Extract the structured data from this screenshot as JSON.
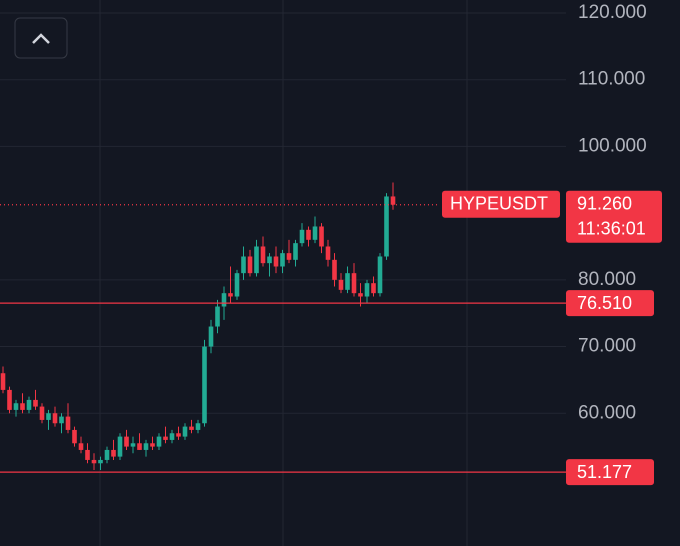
{
  "chart_data": {
    "type": "candlestick",
    "symbol": "HYPEUSDT",
    "last_price": {
      "value": 91.26,
      "label": "91.260"
    },
    "countdown": "11:36:01",
    "levels": [
      {
        "value": 76.51,
        "label": "76.510"
      },
      {
        "value": 51.177,
        "label": "51.177"
      }
    ],
    "up_color": "#22ab94",
    "down_color": "#f23645",
    "level_color": "#f23645",
    "grid": true,
    "ylim": [
      40.1,
      121.95
    ],
    "yticks": [
      {
        "value": 120,
        "label": "120.000"
      },
      {
        "value": 110,
        "label": "110.000"
      },
      {
        "value": 100,
        "label": "100.000"
      },
      {
        "value": 80,
        "label": "80.000"
      },
      {
        "value": 70,
        "label": "70.000"
      },
      {
        "value": 60,
        "label": "60.000"
      }
    ],
    "open": [
      66,
      63.5,
      60.5,
      61.5,
      60.5,
      62,
      61,
      59,
      60,
      58.5,
      59.5,
      57.5,
      55.5,
      54.5,
      53,
      52.5,
      53,
      54.5,
      53.5,
      56.5,
      55,
      55.5,
      54.5,
      55.5,
      55,
      56.5,
      56,
      57,
      56.5,
      58,
      57.5,
      58.5,
      70,
      73,
      76,
      78,
      77.5,
      81,
      83.5,
      81,
      85,
      82.5,
      83.5,
      82,
      84,
      83,
      85.5,
      87.5,
      86,
      88,
      85,
      83,
      80,
      78.5,
      81,
      78,
      77.5,
      79.5,
      78,
      83.5,
      92.5
    ],
    "high": [
      67,
      64,
      62,
      63,
      62.5,
      63.5,
      61.5,
      60.5,
      61,
      60,
      61.5,
      58,
      56.5,
      55.5,
      54,
      53.5,
      55,
      56,
      57,
      57.5,
      56.5,
      57,
      56,
      56.5,
      57,
      58,
      57.5,
      58,
      58.5,
      59,
      59,
      71,
      74,
      77,
      79,
      82,
      81.5,
      85,
      84.5,
      86,
      86.5,
      84,
      85,
      84.5,
      86,
      86,
      88.5,
      88,
      89.5,
      88.5,
      86,
      84,
      81,
      82,
      82.5,
      79.5,
      80,
      80.5,
      84,
      93,
      94.6
    ],
    "low": [
      63,
      60,
      59.5,
      60,
      60,
      60.5,
      58.5,
      57.5,
      58,
      57,
      57,
      55,
      54,
      52.5,
      51.5,
      51.5,
      52.5,
      53,
      53,
      54.5,
      54,
      54.5,
      53.5,
      54.5,
      54.5,
      55.5,
      55.5,
      56,
      56,
      57,
      57,
      58,
      69,
      72,
      74,
      76.5,
      77,
      80,
      80.5,
      80.5,
      82,
      80.5,
      81,
      81,
      82.5,
      82,
      85,
      85,
      85.5,
      84,
      82,
      79,
      78,
      78,
      77.5,
      76,
      76.5,
      77.5,
      77.5,
      83,
      90.5
    ],
    "close": [
      63.5,
      60.5,
      61.5,
      60.5,
      62,
      61,
      59,
      60,
      58.5,
      59.5,
      57.5,
      55.5,
      54.5,
      53,
      52.5,
      53,
      54.5,
      53.5,
      56.5,
      55,
      55.5,
      54.5,
      55.5,
      55,
      56.5,
      56,
      57,
      56.5,
      58,
      57.5,
      58.5,
      70,
      73,
      76,
      78,
      77.5,
      81,
      83.5,
      81,
      85,
      82.5,
      83.5,
      82,
      84,
      83,
      85.5,
      87.5,
      86,
      88,
      85,
      83,
      80,
      78.5,
      81,
      78,
      77.5,
      79.5,
      78,
      83.5,
      92.5,
      91.26
    ]
  }
}
